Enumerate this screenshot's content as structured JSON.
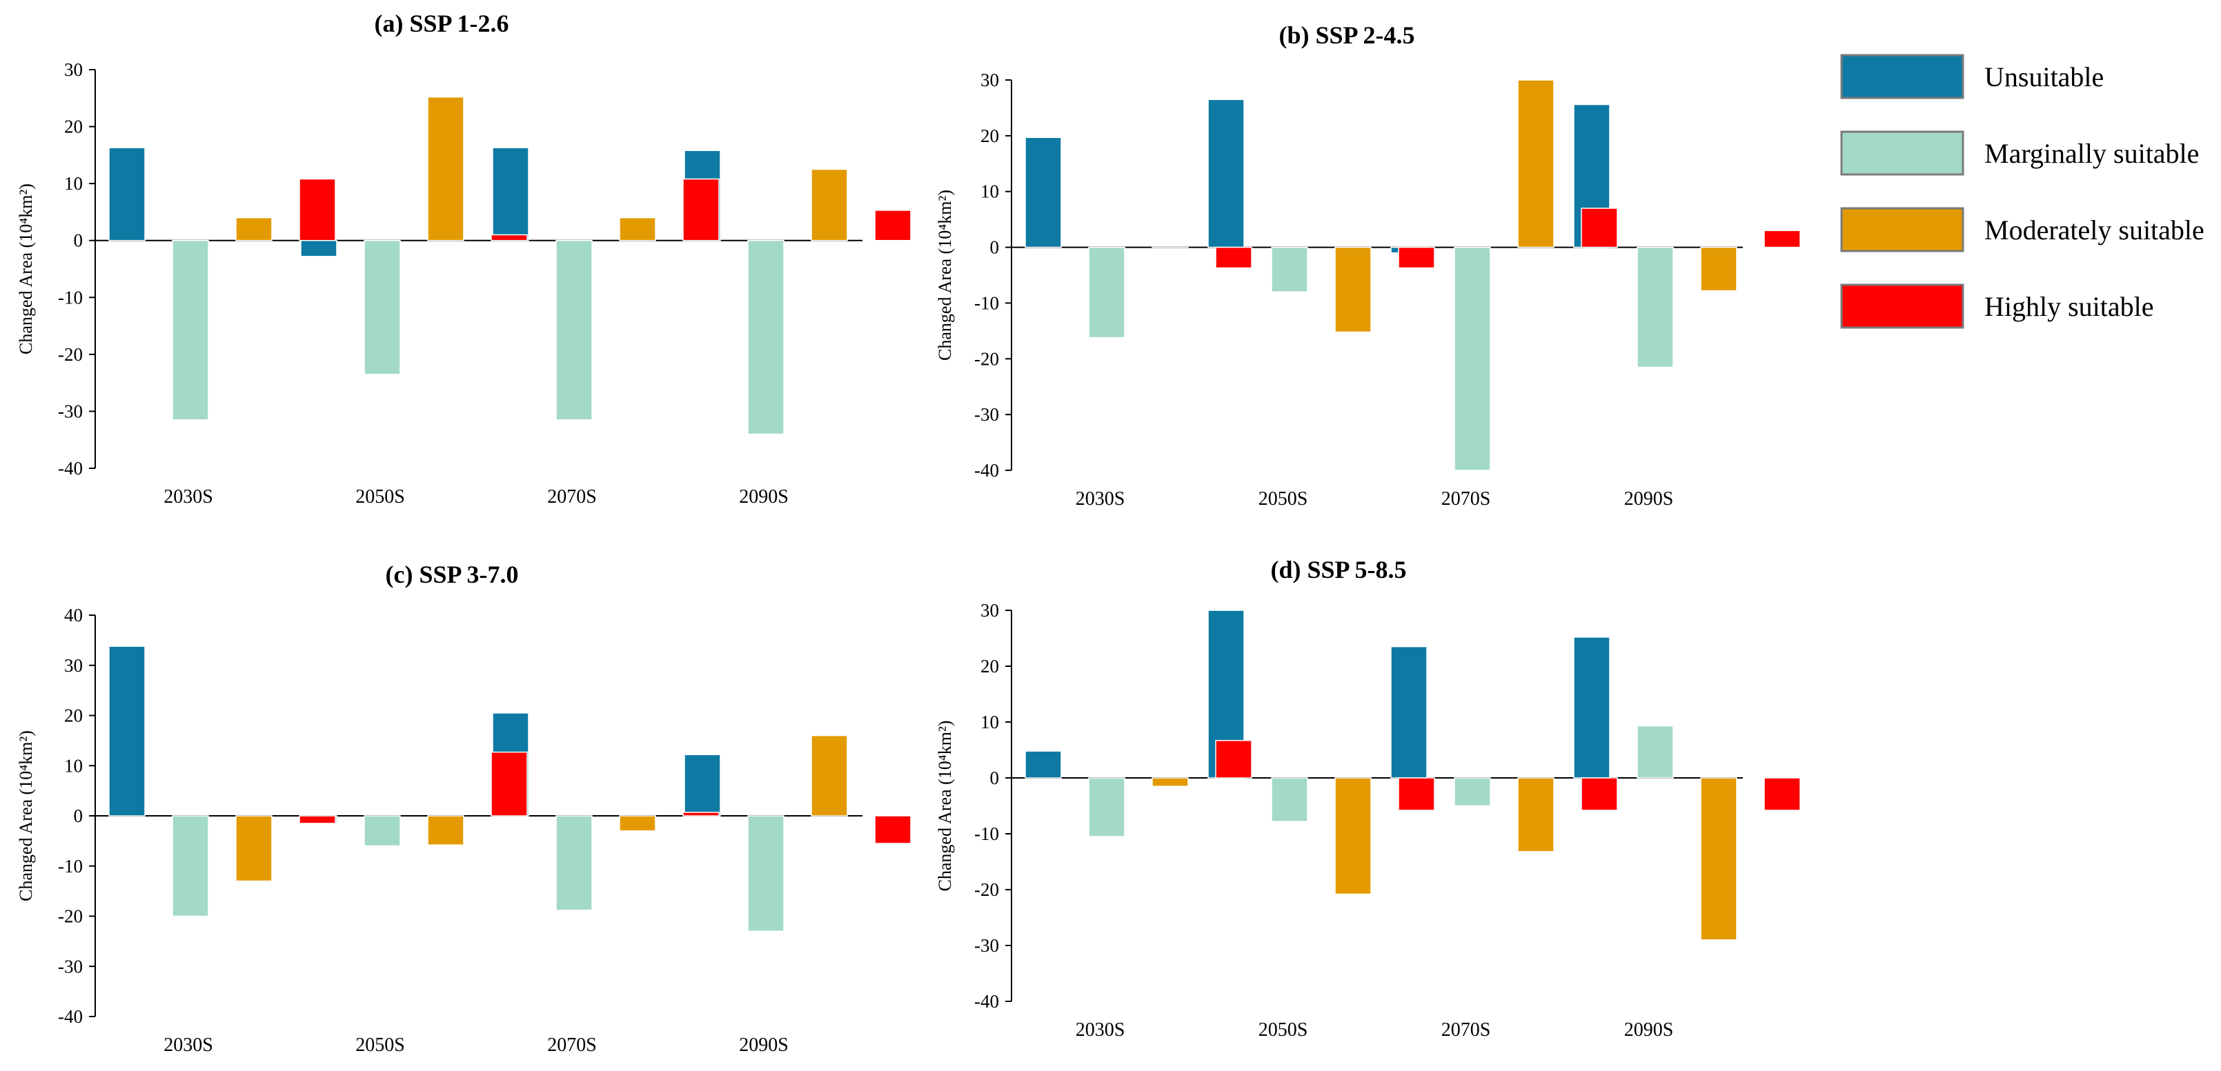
{
  "chart_data": [
    {
      "type": "bar",
      "title": "(a) SSP 1-2.6",
      "ylabel": "Changed Area (10⁴km²)",
      "xlabel": "",
      "ylim": [
        -40,
        30
      ],
      "yticks": [
        30,
        20,
        10,
        0,
        -10,
        -20,
        -30,
        -40
      ],
      "categories": [
        "2030S",
        "2050S",
        "2070S",
        "2090S"
      ],
      "series": [
        {
          "name": "Unsuitable",
          "values": [
            16.3,
            -2.8,
            16.3,
            15.8
          ]
        },
        {
          "name": "Marginally suitable",
          "values": [
            -31.5,
            -23.5,
            -31.5,
            -34.0
          ]
        },
        {
          "name": "Moderately suitable",
          "values": [
            4.0,
            25.2,
            4.0,
            12.5
          ]
        },
        {
          "name": "Highly suitable",
          "values": [
            10.8,
            1.0,
            10.8,
            5.3
          ]
        }
      ]
    },
    {
      "type": "bar",
      "title": "(b) SSP 2-4.5",
      "ylabel": "Changed Area (10⁴km²)",
      "xlabel": "",
      "ylim": [
        -40,
        30
      ],
      "yticks": [
        30,
        20,
        10,
        0,
        -10,
        -20,
        -30,
        -40
      ],
      "categories": [
        "2030S",
        "2050S",
        "2070S",
        "2090S"
      ],
      "series": [
        {
          "name": "Unsuitable",
          "values": [
            19.7,
            26.5,
            -1.0,
            25.6
          ]
        },
        {
          "name": "Marginally suitable",
          "values": [
            -16.2,
            -8.0,
            -40.0,
            -21.5
          ]
        },
        {
          "name": "Moderately suitable",
          "values": [
            0,
            -15.2,
            30.0,
            -7.8
          ]
        },
        {
          "name": "Highly suitable",
          "values": [
            -3.7,
            -3.7,
            7.0,
            3.0
          ]
        }
      ]
    },
    {
      "type": "bar",
      "title": "(c) SSP 3-7.0",
      "ylabel": "Changed Area (10⁴km²)",
      "xlabel": "",
      "ylim": [
        -40,
        40
      ],
      "yticks": [
        40,
        30,
        20,
        10,
        0,
        -10,
        -20,
        -30,
        -40
      ],
      "categories": [
        "2030S",
        "2050S",
        "2070S",
        "2090S"
      ],
      "series": [
        {
          "name": "Unsuitable",
          "values": [
            33.8,
            -1.5,
            20.5,
            12.2
          ]
        },
        {
          "name": "Marginally suitable",
          "values": [
            -20.0,
            -6.0,
            -18.8,
            -23.0
          ]
        },
        {
          "name": "Moderately suitable",
          "values": [
            -13.0,
            -5.8,
            -3.0,
            16.0
          ]
        },
        {
          "name": "Highly suitable",
          "values": [
            -1.5,
            12.7,
            0.7,
            -5.5
          ]
        }
      ]
    },
    {
      "type": "bar",
      "title": "(d) SSP 5-8.5",
      "ylabel": "Changed Area (10⁴km²)",
      "xlabel": "",
      "ylim": [
        -40,
        30
      ],
      "yticks": [
        30,
        20,
        10,
        0,
        -10,
        -20,
        -30,
        -40
      ],
      "categories": [
        "2030S",
        "2050S",
        "2070S",
        "2090S"
      ],
      "series": [
        {
          "name": "Unsuitable",
          "values": [
            4.8,
            30.0,
            23.5,
            25.2
          ]
        },
        {
          "name": "Marginally suitable",
          "values": [
            -10.5,
            -7.8,
            -5.0,
            9.3
          ]
        },
        {
          "name": "Moderately suitable",
          "values": [
            -1.5,
            -20.8,
            -13.2,
            -29.0
          ]
        },
        {
          "name": "Highly suitable",
          "values": [
            6.7,
            -5.8,
            -5.8,
            -5.8
          ]
        }
      ]
    }
  ],
  "legend": {
    "items": [
      {
        "label": "Unsuitable",
        "color": "#0e7aa3"
      },
      {
        "label": "Marginally suitable",
        "color": "#a3dac6"
      },
      {
        "label": "Moderately suitable",
        "color": "#e39a00"
      },
      {
        "label": "Highly suitable",
        "color": "#ff0000"
      }
    ]
  }
}
